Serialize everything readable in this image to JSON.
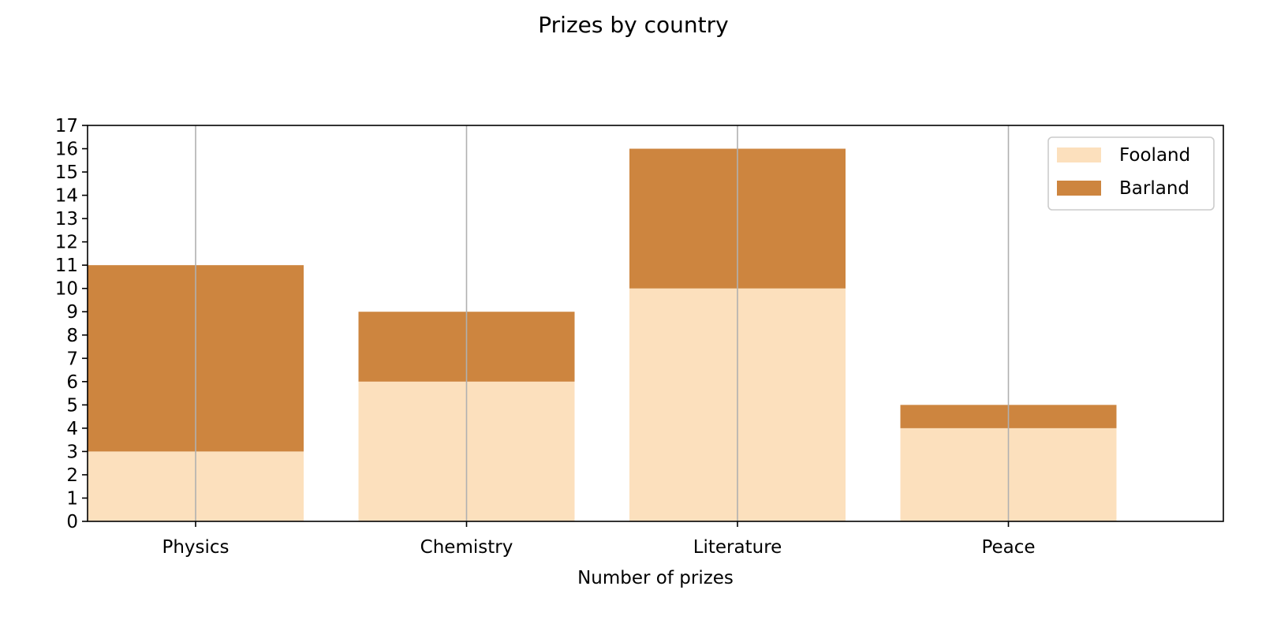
{
  "chart_data": {
    "type": "bar",
    "stacked": true,
    "title": "Prizes by country",
    "xlabel": "Number of prizes",
    "ylabel": "",
    "categories": [
      "Physics",
      "Chemistry",
      "Literature",
      "Peace"
    ],
    "series": [
      {
        "name": "Fooland",
        "values": [
          3,
          6,
          10,
          4
        ],
        "color": "#fce0bd"
      },
      {
        "name": "Barland",
        "values": [
          8,
          3,
          6,
          1
        ],
        "color": "#cd853f"
      }
    ],
    "ylim": [
      0,
      17
    ],
    "yticks": [
      0,
      1,
      2,
      3,
      4,
      5,
      6,
      7,
      8,
      9,
      10,
      11,
      12,
      13,
      14,
      15,
      16,
      17
    ],
    "grid": "x",
    "legend_position": "top-right"
  }
}
